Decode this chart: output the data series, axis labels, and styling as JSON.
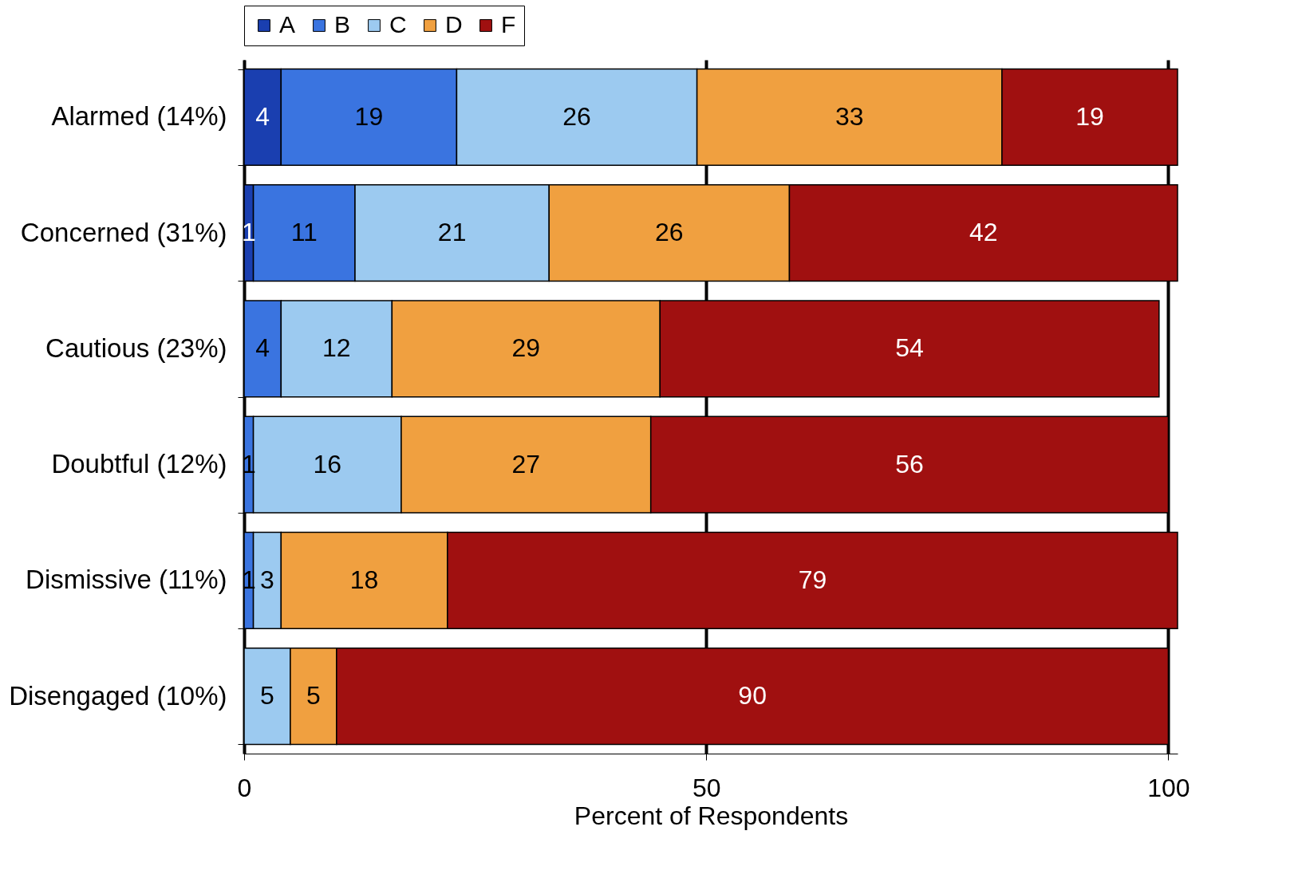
{
  "chart_data": {
    "type": "bar",
    "orientation": "horizontal",
    "stacked": true,
    "xlabel": "Percent of Respondents",
    "categories": [
      "Alarmed (14%)",
      "Concerned (31%)",
      "Cautious (23%)",
      "Doubtful (12%)",
      "Dismissive (11%)",
      "Disengaged (10%)"
    ],
    "series": [
      {
        "name": "A",
        "color": "#1a3fb0",
        "values": [
          4,
          1,
          null,
          null,
          null,
          null
        ]
      },
      {
        "name": "B",
        "color": "#3a74e0",
        "values": [
          19,
          11,
          4,
          1,
          1,
          null
        ]
      },
      {
        "name": "C",
        "color": "#9ccaf0",
        "values": [
          26,
          21,
          12,
          16,
          3,
          5
        ]
      },
      {
        "name": "D",
        "color": "#f0a040",
        "values": [
          33,
          26,
          29,
          27,
          18,
          5
        ]
      },
      {
        "name": "F",
        "color": "#a01010",
        "values": [
          19,
          42,
          54,
          56,
          79,
          90
        ]
      }
    ],
    "xlim": [
      0,
      101
    ],
    "xticks": [
      0,
      50,
      100
    ],
    "grid": "x",
    "legend": "top",
    "data_labels": true
  }
}
